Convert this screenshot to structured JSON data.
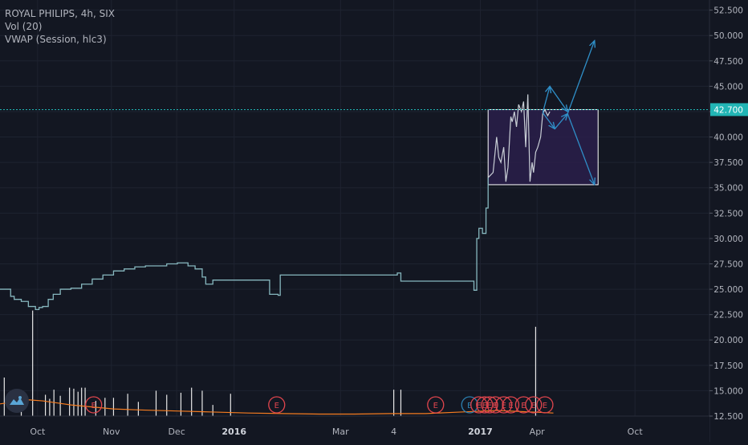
{
  "legend": {
    "symbol_line": "ROYAL PHILIPS, 4h, SIX",
    "indicator_1": "Vol (20)",
    "indicator_2": "VWAP (Session, hlc3)"
  },
  "current_price_label": "42.700",
  "earnings_marker_label": "E",
  "logo_icon": "tradingview-logo-icon",
  "colors": {
    "background": "#131722",
    "price_line": "#86b7be",
    "price_line_2017": "#c9cfd6",
    "vwap": "#f57c20",
    "volume": "#e8e8e8",
    "earnings": "#e0454d",
    "earnings_blue": "#2c7fb0",
    "drawing_arrow": "#2f8fc8",
    "box_fill": "#2a1f4a",
    "box_stroke": "#ffffff",
    "current_price": "#22b5b5"
  },
  "chart_data": {
    "type": "line",
    "title": "ROYAL PHILIPS, 4h, SIX",
    "ylim": [
      12.5,
      53.5
    ],
    "y_ticks": [
      12.5,
      15.0,
      17.5,
      20.0,
      22.5,
      25.0,
      27.5,
      30.0,
      32.5,
      35.0,
      37.5,
      40.0,
      42.5,
      45.0,
      47.5,
      50.0,
      52.5
    ],
    "y_tick_labels": [
      "12.500",
      "15.000",
      "17.500",
      "20.000",
      "22.500",
      "25.000",
      "27.500",
      "30.000",
      "32.500",
      "35.000",
      "37.500",
      "40.000",
      "42.500",
      "45.000",
      "47.500",
      "50.000",
      "52.500"
    ],
    "x_ticks": [
      {
        "label": "Oct",
        "t": 0.053
      },
      {
        "label": "Nov",
        "t": 0.157
      },
      {
        "label": "Dec",
        "t": 0.249
      },
      {
        "label": "2016",
        "t": 0.33
      },
      {
        "label": "Mar",
        "t": 0.48
      },
      {
        "label": "4",
        "t": 0.555
      },
      {
        "label": "2017",
        "t": 0.677
      },
      {
        "label": "Apr",
        "t": 0.757
      },
      {
        "label": "Oct",
        "t": 0.895
      }
    ],
    "current_price": 42.7,
    "price_series": {
      "name": "",
      "t": [
        0.0,
        0.012,
        0.015,
        0.02,
        0.03,
        0.04,
        0.05,
        0.055,
        0.06,
        0.068,
        0.075,
        0.085,
        0.1,
        0.115,
        0.13,
        0.145,
        0.16,
        0.175,
        0.19,
        0.205,
        0.22,
        0.235,
        0.25,
        0.265,
        0.275,
        0.285,
        0.29,
        0.3,
        0.31,
        0.35,
        0.375,
        0.38,
        0.392,
        0.395,
        0.4,
        0.45,
        0.5,
        0.55,
        0.56,
        0.565,
        0.57,
        0.6,
        0.65,
        0.665,
        0.668,
        0.672,
        0.675,
        0.68,
        0.685,
        0.688
      ],
      "y": [
        25.0,
        25.0,
        24.3,
        24.0,
        23.8,
        23.3,
        23.0,
        23.2,
        23.3,
        24.0,
        24.5,
        25.0,
        25.1,
        25.5,
        26.0,
        26.4,
        26.8,
        27.0,
        27.2,
        27.3,
        27.3,
        27.5,
        27.6,
        27.3,
        27.0,
        26.2,
        25.5,
        25.9,
        25.9,
        25.9,
        25.9,
        24.5,
        24.4,
        26.4,
        26.4,
        26.4,
        26.4,
        26.4,
        26.6,
        25.8,
        25.8,
        25.8,
        25.8,
        25.8,
        24.9,
        30.0,
        31.0,
        30.5,
        33.0,
        36.0
      ]
    },
    "box_series": {
      "name": "",
      "t": [
        0.688,
        0.695,
        0.7,
        0.703,
        0.706,
        0.71,
        0.713,
        0.716,
        0.72,
        0.722,
        0.725,
        0.728,
        0.731,
        0.735,
        0.738,
        0.741,
        0.744,
        0.747,
        0.75,
        0.752,
        0.755,
        0.758,
        0.762,
        0.765,
        0.768,
        0.772,
        0.775
      ],
      "y": [
        36.0,
        36.5,
        40.0,
        38.0,
        37.5,
        39.0,
        35.6,
        37.0,
        42.0,
        41.5,
        42.5,
        41.0,
        43.2,
        42.5,
        43.5,
        39.0,
        44.2,
        35.6,
        37.5,
        36.5,
        38.5,
        39.0,
        40.0,
        42.3,
        42.7,
        42.1,
        42.5
      ]
    },
    "vwap_series": {
      "name": "",
      "t": [
        0.0,
        0.02,
        0.04,
        0.06,
        0.08,
        0.1,
        0.13,
        0.16,
        0.2,
        0.25,
        0.3,
        0.35,
        0.4,
        0.45,
        0.5,
        0.55,
        0.6,
        0.65,
        0.7,
        0.75,
        0.78
      ],
      "y": [
        13.7,
        13.9,
        14.1,
        14.0,
        13.8,
        13.6,
        13.4,
        13.2,
        13.1,
        13.0,
        12.9,
        12.8,
        12.75,
        12.7,
        12.7,
        12.75,
        12.75,
        12.9,
        13.05,
        12.9,
        12.8
      ]
    },
    "volume_bars": {
      "t": [
        0.006,
        0.03,
        0.046,
        0.064,
        0.07,
        0.076,
        0.085,
        0.098,
        0.104,
        0.11,
        0.115,
        0.12,
        0.135,
        0.148,
        0.16,
        0.18,
        0.195,
        0.22,
        0.235,
        0.255,
        0.27,
        0.285,
        0.3,
        0.325,
        0.555,
        0.565,
        0.755
      ],
      "y": [
        16.3,
        15.0,
        22.9,
        14.6,
        14.2,
        15.1,
        14.5,
        15.3,
        15.2,
        14.9,
        15.3,
        15.3,
        14.0,
        14.3,
        14.3,
        14.7,
        13.9,
        15.0,
        14.6,
        14.8,
        15.3,
        15.0,
        13.6,
        14.7,
        15.1,
        15.1,
        21.3
      ]
    },
    "earnings_markers": {
      "label": "E",
      "t": [
        0.132,
        0.39,
        0.614
      ],
      "t_blue": [
        0.662
      ],
      "t_cluster": [
        0.675,
        0.683,
        0.69,
        0.698,
        0.71,
        0.72,
        0.738,
        0.752,
        0.768
      ]
    },
    "rectangle": {
      "t0": 0.688,
      "t1": 0.843,
      "y0": 35.3,
      "y1": 42.7
    },
    "arrows": [
      {
        "from": [
          0.765,
          42.4
        ],
        "to": [
          0.775,
          45.0
        ]
      },
      {
        "from": [
          0.765,
          42.4
        ],
        "to": [
          0.782,
          40.8
        ]
      },
      {
        "from": [
          0.775,
          45.0
        ],
        "to": [
          0.8,
          42.5
        ]
      },
      {
        "from": [
          0.782,
          40.8
        ],
        "to": [
          0.8,
          42.3
        ]
      },
      {
        "from": [
          0.8,
          42.3
        ],
        "to": [
          0.838,
          49.5
        ]
      },
      {
        "from": [
          0.8,
          42.3
        ],
        "to": [
          0.838,
          35.3
        ]
      }
    ],
    "grid": true,
    "legend_position": "top-left"
  }
}
